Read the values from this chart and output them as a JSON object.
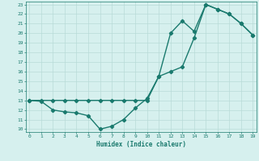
{
  "line1_x": [
    0,
    1,
    2,
    3,
    4,
    5,
    6,
    7,
    8,
    9,
    10,
    11,
    12,
    13,
    14,
    15,
    16,
    17,
    18,
    19
  ],
  "line1_y": [
    13,
    13,
    13,
    13,
    13,
    13,
    13,
    13,
    13,
    13,
    13,
    15.5,
    16,
    16.5,
    19.5,
    23,
    22.5,
    22,
    21,
    19.8
  ],
  "line2_x": [
    0,
    1,
    2,
    3,
    4,
    5,
    6,
    7,
    8,
    9,
    10,
    11,
    12,
    13,
    14,
    15,
    16,
    17,
    18,
    19
  ],
  "line2_y": [
    13,
    12.9,
    12,
    11.8,
    11.7,
    11.4,
    10,
    10.3,
    11,
    12.2,
    13.2,
    15.5,
    20,
    21.3,
    20.2,
    23,
    22.5,
    22,
    21,
    19.8
  ],
  "line_color": "#1a7a6e",
  "bg_color": "#d6f0ee",
  "grid_color": "#b8dbd8",
  "xlabel": "Humidex (Indice chaleur)",
  "ylim": [
    10,
    23
  ],
  "xlim": [
    0,
    19
  ],
  "yticks": [
    10,
    11,
    12,
    13,
    14,
    15,
    16,
    17,
    18,
    19,
    20,
    21,
    22,
    23
  ],
  "xticks": [
    0,
    1,
    2,
    3,
    4,
    5,
    6,
    7,
    8,
    9,
    10,
    11,
    12,
    13,
    14,
    15,
    16,
    17,
    18,
    19
  ],
  "marker": "D",
  "marker_size": 2.2,
  "line_width": 1.0
}
